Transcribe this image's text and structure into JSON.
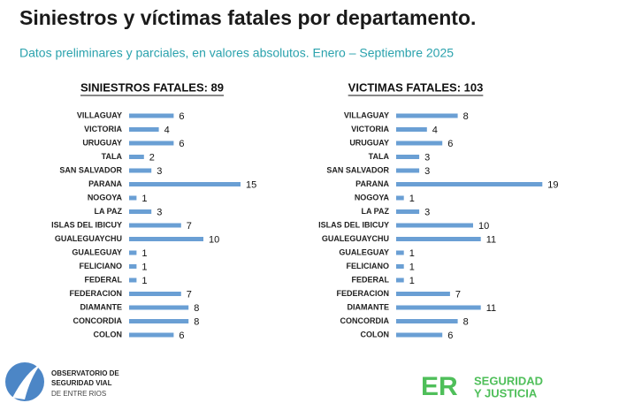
{
  "header": {
    "title": "Siniestros y víctimas fatales por departamento.",
    "subtitle": "Datos preliminares y parciales, en valores absolutos. Enero – Septiembre 2025"
  },
  "chart_data": [
    {
      "type": "bar",
      "orientation": "horizontal",
      "title": "SINIESTROS FATALES: 89",
      "color": "#6a9fd4",
      "categories": [
        "VILLAGUAY",
        "VICTORIA",
        "URUGUAY",
        "TALA",
        "SAN SALVADOR",
        "PARANA",
        "NOGOYA",
        "LA PAZ",
        "ISLAS DEL IBICUY",
        "GUALEGUAYCHU",
        "GUALEGUAY",
        "FELICIANO",
        "FEDERAL",
        "FEDERACION",
        "DIAMANTE",
        "CONCORDIA",
        "COLON"
      ],
      "values": [
        6,
        4,
        6,
        2,
        3,
        15,
        1,
        3,
        7,
        10,
        1,
        1,
        1,
        7,
        8,
        8,
        6
      ]
    },
    {
      "type": "bar",
      "orientation": "horizontal",
      "title": "VICTIMAS FATALES: 103",
      "color": "#6a9fd4",
      "categories": [
        "VILLAGUAY",
        "VICTORIA",
        "URUGUAY",
        "TALA",
        "SAN SALVADOR",
        "PARANA",
        "NOGOYA",
        "LA PAZ",
        "ISLAS DEL IBICUY",
        "GUALEGUAYCHU",
        "GUALEGUAY",
        "FELICIANO",
        "FEDERAL",
        "FEDERACION",
        "DIAMANTE",
        "CONCORDIA",
        "COLON"
      ],
      "values": [
        8,
        4,
        6,
        3,
        3,
        19,
        1,
        3,
        10,
        11,
        1,
        1,
        1,
        7,
        11,
        8,
        6
      ]
    }
  ],
  "footer": {
    "observatory": [
      "OBSERVATORIO DE",
      "SEGURIDAD VIAL",
      "DE ENTRE RIOS"
    ],
    "brand": "ER",
    "brand_text": [
      "SEGURIDAD",
      "Y JUSTICIA"
    ]
  }
}
